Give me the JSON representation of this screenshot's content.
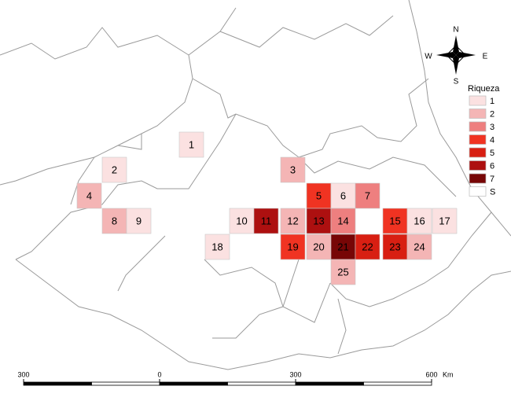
{
  "compass": {
    "north": "N",
    "south": "S",
    "east": "E",
    "west": "W"
  },
  "legend": {
    "title": "Riqueza",
    "entries": [
      {
        "label": "1",
        "level": 1,
        "color": "#fbe1e1"
      },
      {
        "label": "2",
        "level": 2,
        "color": "#f4b5b5"
      },
      {
        "label": "3",
        "level": 3,
        "color": "#ee7f7f"
      },
      {
        "label": "4",
        "level": 4,
        "color": "#f03322"
      },
      {
        "label": "5",
        "level": 5,
        "color": "#d81f12"
      },
      {
        "label": "6",
        "level": 6,
        "color": "#ad1010"
      },
      {
        "label": "7",
        "level": 7,
        "color": "#770606"
      },
      {
        "label": "S",
        "color": "#ffffff"
      }
    ]
  },
  "cells": [
    {
      "id": 1,
      "level": 1
    },
    {
      "id": 2,
      "level": 1
    },
    {
      "id": 3,
      "level": 2
    },
    {
      "id": 4,
      "level": 2
    },
    {
      "id": 5,
      "level": 4
    },
    {
      "id": 6,
      "level": 1
    },
    {
      "id": 7,
      "level": 3
    },
    {
      "id": 8,
      "level": 2
    },
    {
      "id": 9,
      "level": 1
    },
    {
      "id": 10,
      "level": 1
    },
    {
      "id": 11,
      "level": 6
    },
    {
      "id": 12,
      "level": 2
    },
    {
      "id": 13,
      "level": 6
    },
    {
      "id": 14,
      "level": 3
    },
    {
      "id": 15,
      "level": 4
    },
    {
      "id": 16,
      "level": 1
    },
    {
      "id": 17,
      "level": 1
    },
    {
      "id": 18,
      "level": 1
    },
    {
      "id": 19,
      "level": 4
    },
    {
      "id": 20,
      "level": 2
    },
    {
      "id": 21,
      "level": 7
    },
    {
      "id": 22,
      "level": 5
    },
    {
      "id": 23,
      "level": 5
    },
    {
      "id": 24,
      "level": 2
    },
    {
      "id": 25,
      "level": 2
    }
  ],
  "scale_bar": {
    "ticks": [
      {
        "value": -300,
        "label": "300"
      },
      0,
      300,
      600
    ],
    "unit": "Km"
  }
}
